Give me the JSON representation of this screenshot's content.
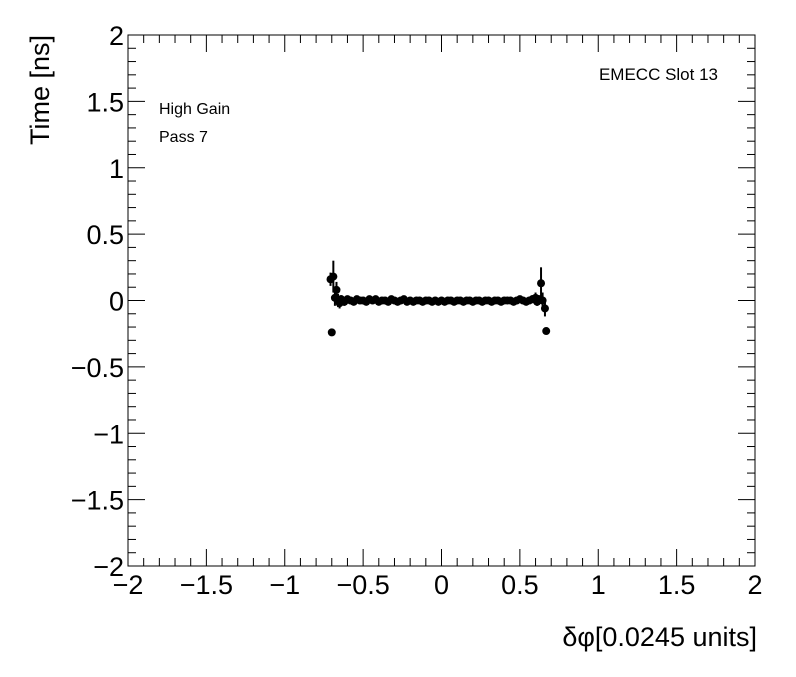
{
  "chart_data": {
    "type": "scatter",
    "title": "",
    "xlabel": "δφ[0.0245 units]",
    "ylabel": "Time [ns]",
    "xlim": [
      -2,
      2
    ],
    "ylim": [
      -2,
      2
    ],
    "x_ticks": [
      -2,
      -1.5,
      -1,
      -0.5,
      0,
      0.5,
      1,
      1.5,
      2
    ],
    "y_ticks": [
      -2,
      -1.5,
      -1,
      -0.5,
      0,
      0.5,
      1,
      1.5,
      2
    ],
    "x_tick_labels": [
      "−2",
      "−1.5",
      "−1",
      "−0.5",
      "0",
      "0.5",
      "1",
      "1.5",
      "2"
    ],
    "y_tick_labels": [
      "−2",
      "−1.5",
      "−1",
      "−0.5",
      "0",
      "0.5",
      "1",
      "1.5",
      "2"
    ],
    "grid": false,
    "annotations": {
      "top_right": "EMECC Slot 13",
      "top_left_line1": "High Gain",
      "top_left_line2": "Pass 7"
    },
    "series": [
      {
        "marker_color": "#000000",
        "points": [
          {
            "x": -0.708,
            "y": 0.16,
            "err": 0.05
          },
          {
            "x": -0.7,
            "y": -0.24,
            "err": 0.0
          },
          {
            "x": -0.69,
            "y": 0.18,
            "err": 0.12
          },
          {
            "x": -0.68,
            "y": 0.02,
            "err": 0.06
          },
          {
            "x": -0.67,
            "y": 0.08,
            "err": 0.06
          },
          {
            "x": -0.66,
            "y": 0.0,
            "err": 0.05
          },
          {
            "x": -0.65,
            "y": -0.02,
            "err": 0.04
          },
          {
            "x": -0.64,
            "y": 0.01,
            "err": 0.03
          },
          {
            "x": -0.62,
            "y": -0.01,
            "err": 0.03
          },
          {
            "x": -0.6,
            "y": 0.01,
            "err": 0.02
          },
          {
            "x": -0.58,
            "y": 0.0,
            "err": 0.02
          },
          {
            "x": -0.56,
            "y": -0.01,
            "err": 0.02
          },
          {
            "x": -0.54,
            "y": 0.01,
            "err": 0.02
          },
          {
            "x": -0.52,
            "y": 0.0,
            "err": 0.02
          },
          {
            "x": -0.5,
            "y": 0.0,
            "err": 0.02
          },
          {
            "x": -0.48,
            "y": -0.01,
            "err": 0.02
          },
          {
            "x": -0.46,
            "y": 0.01,
            "err": 0.02
          },
          {
            "x": -0.44,
            "y": 0.0,
            "err": 0.02
          },
          {
            "x": -0.42,
            "y": 0.01,
            "err": 0.02
          },
          {
            "x": -0.4,
            "y": -0.01,
            "err": 0.02
          },
          {
            "x": -0.38,
            "y": 0.0,
            "err": 0.02
          },
          {
            "x": -0.36,
            "y": 0.0,
            "err": 0.02
          },
          {
            "x": -0.34,
            "y": -0.01,
            "err": 0.02
          },
          {
            "x": -0.32,
            "y": 0.01,
            "err": 0.02
          },
          {
            "x": -0.3,
            "y": 0.0,
            "err": 0.02
          },
          {
            "x": -0.28,
            "y": -0.01,
            "err": 0.02
          },
          {
            "x": -0.26,
            "y": 0.0,
            "err": 0.02
          },
          {
            "x": -0.24,
            "y": 0.01,
            "err": 0.02
          },
          {
            "x": -0.22,
            "y": -0.01,
            "err": 0.02
          },
          {
            "x": -0.2,
            "y": 0.0,
            "err": 0.02
          },
          {
            "x": -0.18,
            "y": -0.01,
            "err": 0.02
          },
          {
            "x": -0.16,
            "y": 0.0,
            "err": 0.02
          },
          {
            "x": -0.14,
            "y": 0.0,
            "err": 0.02
          },
          {
            "x": -0.12,
            "y": -0.01,
            "err": 0.02
          },
          {
            "x": -0.1,
            "y": 0.0,
            "err": 0.02
          },
          {
            "x": -0.08,
            "y": 0.0,
            "err": 0.02
          },
          {
            "x": -0.06,
            "y": -0.01,
            "err": 0.02
          },
          {
            "x": -0.04,
            "y": 0.0,
            "err": 0.02
          },
          {
            "x": -0.02,
            "y": -0.01,
            "err": 0.02
          },
          {
            "x": 0.0,
            "y": 0.0,
            "err": 0.02
          },
          {
            "x": 0.02,
            "y": -0.01,
            "err": 0.02
          },
          {
            "x": 0.04,
            "y": 0.0,
            "err": 0.02
          },
          {
            "x": 0.06,
            "y": 0.0,
            "err": 0.02
          },
          {
            "x": 0.08,
            "y": -0.01,
            "err": 0.02
          },
          {
            "x": 0.1,
            "y": 0.0,
            "err": 0.02
          },
          {
            "x": 0.12,
            "y": 0.0,
            "err": 0.02
          },
          {
            "x": 0.14,
            "y": -0.01,
            "err": 0.02
          },
          {
            "x": 0.16,
            "y": 0.0,
            "err": 0.02
          },
          {
            "x": 0.18,
            "y": 0.0,
            "err": 0.02
          },
          {
            "x": 0.2,
            "y": -0.01,
            "err": 0.02
          },
          {
            "x": 0.22,
            "y": 0.0,
            "err": 0.02
          },
          {
            "x": 0.24,
            "y": 0.0,
            "err": 0.02
          },
          {
            "x": 0.26,
            "y": -0.01,
            "err": 0.02
          },
          {
            "x": 0.28,
            "y": 0.0,
            "err": 0.02
          },
          {
            "x": 0.3,
            "y": 0.0,
            "err": 0.02
          },
          {
            "x": 0.32,
            "y": -0.01,
            "err": 0.02
          },
          {
            "x": 0.34,
            "y": 0.0,
            "err": 0.02
          },
          {
            "x": 0.36,
            "y": 0.0,
            "err": 0.02
          },
          {
            "x": 0.38,
            "y": -0.01,
            "err": 0.02
          },
          {
            "x": 0.4,
            "y": 0.0,
            "err": 0.02
          },
          {
            "x": 0.42,
            "y": 0.0,
            "err": 0.02
          },
          {
            "x": 0.44,
            "y": 0.0,
            "err": 0.02
          },
          {
            "x": 0.46,
            "y": -0.01,
            "err": 0.02
          },
          {
            "x": 0.48,
            "y": 0.0,
            "err": 0.02
          },
          {
            "x": 0.5,
            "y": 0.01,
            "err": 0.02
          },
          {
            "x": 0.52,
            "y": 0.0,
            "err": 0.02
          },
          {
            "x": 0.54,
            "y": -0.01,
            "err": 0.02
          },
          {
            "x": 0.56,
            "y": 0.0,
            "err": 0.02
          },
          {
            "x": 0.58,
            "y": 0.01,
            "err": 0.03
          },
          {
            "x": 0.6,
            "y": 0.02,
            "err": 0.04
          },
          {
            "x": 0.61,
            "y": -0.01,
            "err": 0.03
          },
          {
            "x": 0.62,
            "y": 0.01,
            "err": 0.03
          },
          {
            "x": 0.635,
            "y": 0.13,
            "err": 0.12
          },
          {
            "x": 0.645,
            "y": 0.0,
            "err": 0.06
          },
          {
            "x": 0.66,
            "y": -0.06,
            "err": 0.06
          },
          {
            "x": 0.668,
            "y": -0.23,
            "err": 0.0
          }
        ]
      }
    ]
  }
}
